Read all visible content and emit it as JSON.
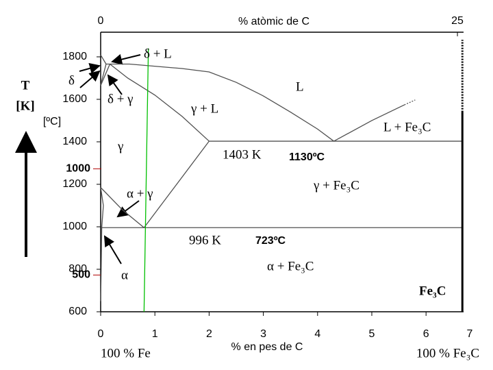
{
  "chart_data": {
    "type": "line",
    "x2label": "% atòmic de C",
    "xlabel": "% en pes de C",
    "ylabel": "T",
    "ylabel_unit": "[K]",
    "y2label": "[ºC]",
    "left_end_label": "100 % Fe",
    "right_end_label": "100 % Fe₃C",
    "xlim": [
      0,
      7
    ],
    "xticks": [
      0,
      1,
      2,
      3,
      4,
      5,
      6,
      7
    ],
    "x2lim": [
      0,
      26.6
    ],
    "x2ticks": [
      0,
      25
    ],
    "ylim": [
      600,
      1916
    ],
    "yticks": [
      600,
      800,
      1000,
      1200,
      1400,
      1600,
      1800
    ],
    "y2lim": [
      327,
      1643
    ],
    "y2ticks": [
      500,
      1000
    ],
    "y2color": "#b00000",
    "annotations": [
      "δ + L",
      "δ",
      "δ + γ",
      "L",
      "γ + L",
      "γ",
      "1403 K",
      "L + Fe₃C",
      "γ + Fe₃C",
      "α + γ",
      "996 K",
      "α + Fe₃C",
      "α",
      "Fe₃C"
    ],
    "temperature_annotations": [
      "1130ºC",
      "723ºC"
    ],
    "series": [
      {
        "color": "#505050",
        "x": [
          0,
          0.1,
          0.53,
          1.5,
          2,
          2.5,
          3,
          3.5,
          4,
          4.3
        ],
        "y": [
          1809,
          1766,
          1766,
          1745,
          1729,
          1680,
          1616,
          1540,
          1460,
          1403
        ]
      },
      {
        "color": "#505050",
        "x": [
          4.3,
          5,
          5.6
        ],
        "y": [
          1403,
          1500,
          1574
        ]
      },
      {
        "color": "#505050",
        "x": [
          5.6,
          5.8
        ],
        "y": [
          1574,
          1597
        ],
        "dash": true
      },
      {
        "color": "#505050",
        "x": [
          0.17,
          0.5,
          1,
          1.5,
          2
        ],
        "y": [
          1766,
          1700,
          1620,
          1520,
          1403
        ]
      },
      {
        "color": "#505050",
        "x": [
          2,
          6.67
        ],
        "y": [
          1403,
          1403
        ]
      },
      {
        "color": "#505050",
        "x": [
          2,
          0.8
        ],
        "y": [
          1403,
          996
        ]
      },
      {
        "color": "#505050",
        "x": [
          0.02,
          6.67
        ],
        "y": [
          996,
          996
        ]
      },
      {
        "color": "#505050",
        "x": [
          0,
          0.4,
          0.8
        ],
        "y": [
          1185,
          1080,
          996
        ]
      },
      {
        "color": "#505050",
        "x": [
          0,
          0.05,
          0.02,
          0.01,
          0
        ],
        "y": [
          1185,
          1100,
          996,
          800,
          650
        ]
      },
      {
        "color": "#505050",
        "x": [
          0,
          0.1
        ],
        "y": [
          1667,
          1766
        ]
      },
      {
        "color": "#505050",
        "x": [
          0,
          0.17
        ],
        "y": [
          1665,
          1766
        ]
      },
      {
        "color": "#00c000",
        "x": [
          0.8,
          0.88
        ],
        "y": [
          600,
          1840
        ]
      },
      {
        "color": "#000000",
        "x": [
          6.67,
          6.67
        ],
        "y": [
          600,
          1540
        ],
        "width": 3
      },
      {
        "color": "#000000",
        "x": [
          6.67,
          6.67
        ],
        "y": [
          1540,
          1880
        ],
        "width": 3,
        "dash": true
      }
    ]
  }
}
